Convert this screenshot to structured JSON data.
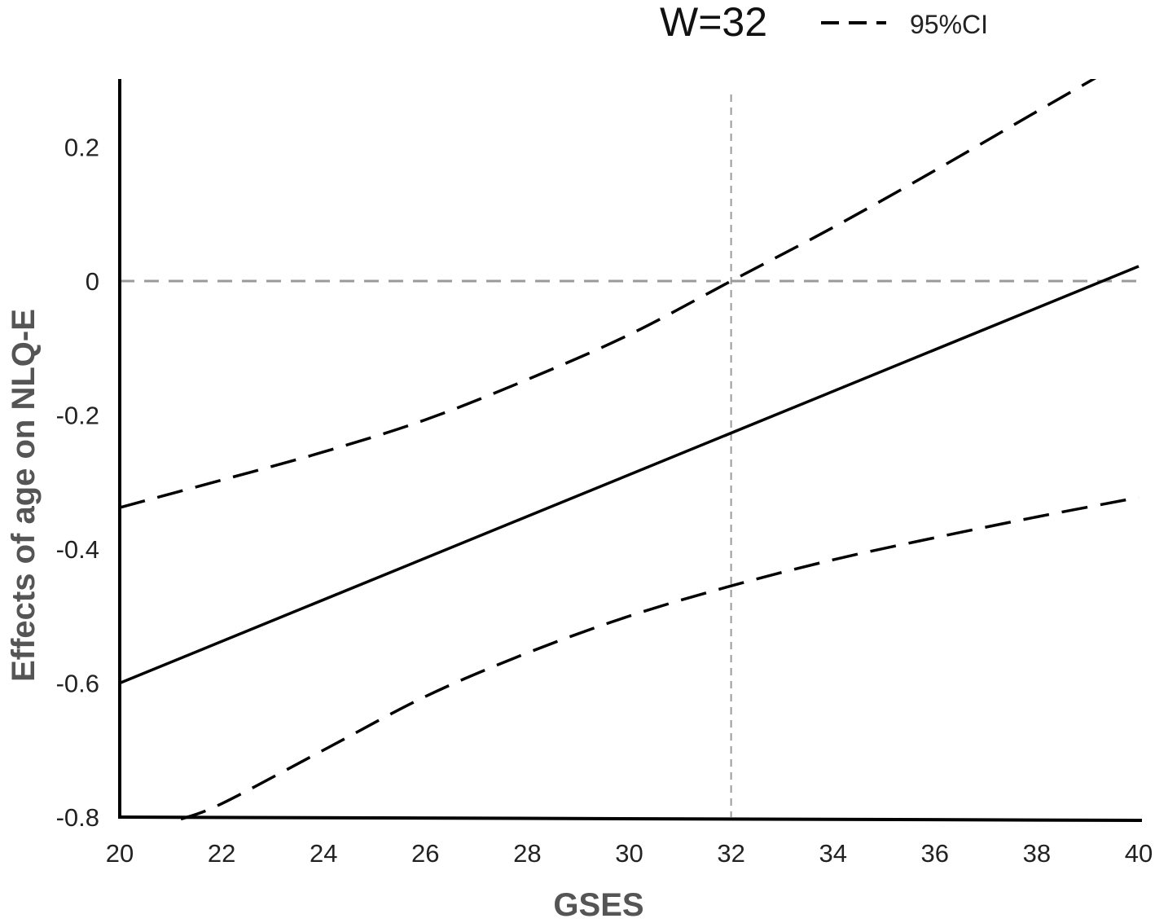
{
  "chart_data": {
    "type": "line",
    "annotation": "W=32",
    "xlabel": "GSES",
    "ylabel": "Effects of age on NLQ-E",
    "xlim": [
      20,
      40
    ],
    "ylim": [
      -0.8,
      0.3
    ],
    "x_ticks": [
      20,
      22,
      24,
      26,
      28,
      30,
      32,
      34,
      36,
      38,
      40
    ],
    "x_tick_labels": [
      "20",
      "22",
      "24",
      "26",
      "28",
      "30",
      "32",
      "34",
      "36",
      "38",
      "40"
    ],
    "y_ticks": [
      -0.8,
      -0.6,
      -0.4,
      -0.2,
      0,
      0.2
    ],
    "y_tick_labels": [
      "-0.8",
      "-0.6",
      "-0.4",
      "-0.2",
      "0",
      "0.2"
    ],
    "legend": {
      "label": "95%CI",
      "placement": "top-right"
    },
    "reference_lines": {
      "y": 0,
      "x": 32
    },
    "colors": {
      "series": "#000000",
      "reference": "#9a9a9a",
      "axis": "#000000"
    },
    "series": [
      {
        "role": "effect",
        "style": "solid",
        "x": [
          20,
          40
        ],
        "y": [
          -0.6,
          0.022
        ]
      },
      {
        "role": "upper",
        "style": "dashed",
        "name": "95%CI",
        "x": [
          20,
          22,
          24,
          26,
          28,
          30,
          32,
          34,
          36,
          38,
          40
        ],
        "y": [
          -0.338,
          -0.297,
          -0.255,
          -0.207,
          -0.147,
          -0.08,
          0.0,
          0.08,
          0.165,
          0.253,
          0.34
        ]
      },
      {
        "role": "lower",
        "style": "dashed",
        "x": [
          21.2,
          22,
          24,
          26,
          28,
          30,
          32,
          34,
          36,
          38,
          40
        ],
        "y": [
          -0.803,
          -0.78,
          -0.7,
          -0.62,
          -0.555,
          -0.5,
          -0.455,
          -0.416,
          -0.383,
          -0.352,
          -0.323
        ]
      }
    ]
  }
}
